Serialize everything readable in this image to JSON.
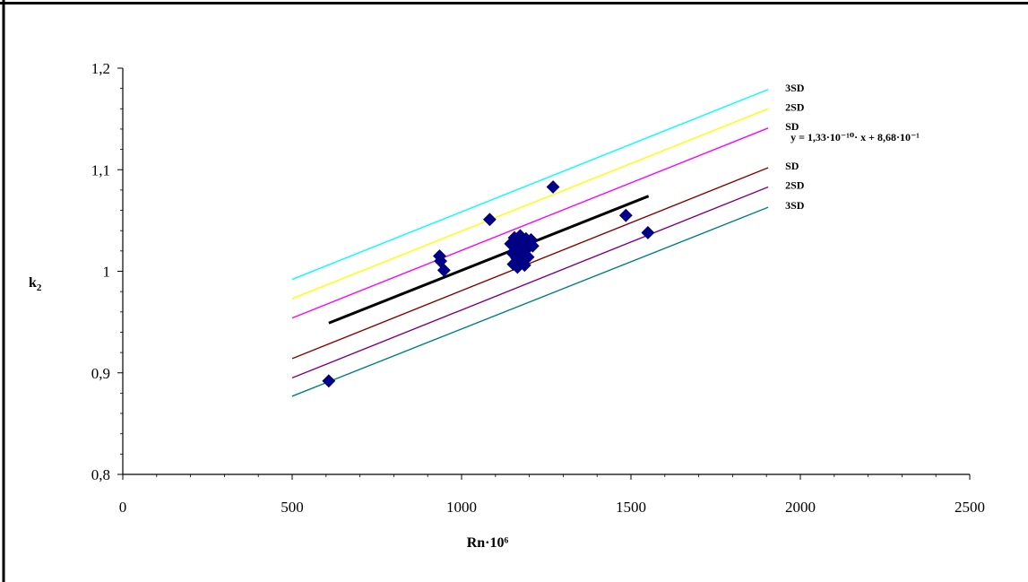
{
  "chart_data": {
    "type": "scatter",
    "xlabel": "Rn·10⁶",
    "ylabel": "k",
    "ylabel_sub": "2",
    "xlim": [
      0,
      2500
    ],
    "ylim": [
      0.8,
      1.2
    ],
    "x_ticks": [
      {
        "value": 0,
        "label": "0"
      },
      {
        "value": 500,
        "label": "500"
      },
      {
        "value": 1000,
        "label": "1000"
      },
      {
        "value": 1500,
        "label": "1500"
      },
      {
        "value": 2000,
        "label": "2000"
      },
      {
        "value": 2500,
        "label": "2500"
      }
    ],
    "y_ticks": [
      {
        "value": 0.8,
        "label": "0,8"
      },
      {
        "value": 0.9,
        "label": "0,9"
      },
      {
        "value": 1.0,
        "label": "1"
      },
      {
        "value": 1.1,
        "label": "1,1"
      },
      {
        "value": 1.2,
        "label": "1,2"
      }
    ],
    "grid": false,
    "series": [
      {
        "kind": "points",
        "marker": "diamond",
        "color": "#00008b",
        "points": [
          [
            608,
            0.892
          ],
          [
            935,
            1.015
          ],
          [
            938,
            1.01
          ],
          [
            948,
            1.001
          ],
          [
            1083,
            1.051
          ],
          [
            1145,
            1.027
          ],
          [
            1150,
            1.018
          ],
          [
            1153,
            1.007
          ],
          [
            1156,
            1.033
          ],
          [
            1160,
            1.024
          ],
          [
            1163,
            1.013
          ],
          [
            1165,
            1.004
          ],
          [
            1168,
            1.029
          ],
          [
            1170,
            1.02
          ],
          [
            1173,
            1.035
          ],
          [
            1176,
            1.011
          ],
          [
            1180,
            1.027
          ],
          [
            1183,
            1.017
          ],
          [
            1186,
            1.006
          ],
          [
            1190,
            1.032
          ],
          [
            1193,
            1.022
          ],
          [
            1196,
            1.014
          ],
          [
            1200,
            1.028
          ],
          [
            1205,
            1.031
          ],
          [
            1210,
            1.025
          ],
          [
            1270,
            1.083
          ],
          [
            1485,
            1.055
          ],
          [
            1550,
            1.038
          ]
        ]
      },
      {
        "kind": "line",
        "role": "regression",
        "color": "#000000",
        "x": [
          608,
          1552
        ],
        "y": [
          0.949,
          1.074
        ],
        "label": "y = 1,33·10⁻¹⁰· x + 8,68·10⁻¹"
      },
      {
        "kind": "line",
        "label": "3SD",
        "color": "#00ffff",
        "x": [
          500,
          1905
        ],
        "y": [
          0.992,
          1.179
        ]
      },
      {
        "kind": "line",
        "label": "2SD",
        "color": "#ffff00",
        "x": [
          500,
          1905
        ],
        "y": [
          0.973,
          1.16
        ]
      },
      {
        "kind": "line",
        "label": "SD",
        "color": "#ff00ff",
        "x": [
          500,
          1905
        ],
        "y": [
          0.954,
          1.141
        ]
      },
      {
        "kind": "line",
        "label": "SD",
        "color": "#8b0000",
        "x": [
          500,
          1905
        ],
        "y": [
          0.914,
          1.102
        ]
      },
      {
        "kind": "line",
        "label": "2SD",
        "color": "#800080",
        "x": [
          500,
          1905
        ],
        "y": [
          0.895,
          1.083
        ]
      },
      {
        "kind": "line",
        "label": "3SD",
        "color": "#008080",
        "x": [
          500,
          1905
        ],
        "y": [
          0.877,
          1.063
        ]
      }
    ]
  }
}
